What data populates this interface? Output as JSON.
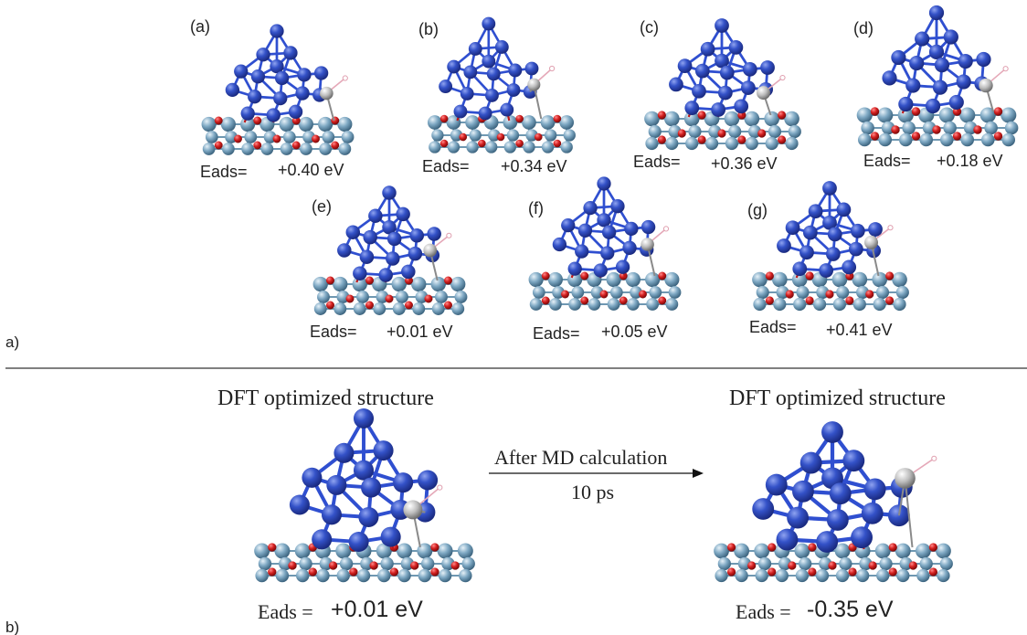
{
  "panel_a": {
    "label": "a)",
    "structures": [
      {
        "tag": "(a)",
        "eads_label": "Eads=",
        "eads_value": "+0.40 eV"
      },
      {
        "tag": "(b)",
        "eads_label": "Eads=",
        "eads_value": "+0.34 eV"
      },
      {
        "tag": "(c)",
        "eads_label": "Eads=",
        "eads_value": "+0.36 eV"
      },
      {
        "tag": "(d)",
        "eads_label": "Eads=",
        "eads_value": "+0.18 eV"
      },
      {
        "tag": "(e)",
        "eads_label": "Eads=",
        "eads_value": "+0.01 eV"
      },
      {
        "tag": "(f)",
        "eads_label": "Eads=",
        "eads_value": "+0.05 eV"
      },
      {
        "tag": "(g)",
        "eads_label": "Eads=",
        "eads_value": "+0.41 eV"
      }
    ]
  },
  "panel_b": {
    "label": "b)",
    "left_title": "DFT optimized structure",
    "right_title": "DFT optimized structure",
    "arrow_top": "After MD calculation",
    "arrow_bottom": "10 ps",
    "left_eads_label": "Eads =",
    "left_eads_value": "+0.01 eV",
    "right_eads_label": "Eads =",
    "right_eads_value": "-0.35 eV"
  },
  "colors": {
    "cluster_atom": "#3452c8",
    "cluster_bond": "#2f4fd0",
    "support_light": "#7fa9c4",
    "support_red": "#d42020",
    "adsorbate_grey": "#bdbdbd",
    "hydrogen_pink": "#f0c8d0"
  }
}
